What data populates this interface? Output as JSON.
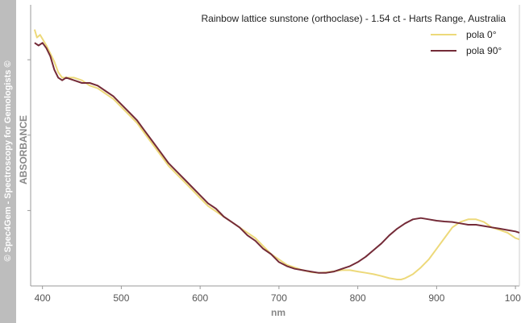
{
  "sidebar": {
    "watermark": "© Spec4Gem - Spectroscopy for Gemologists ©"
  },
  "chart_data": {
    "type": "line",
    "title": "Rainbow lattice sunstone (orthoclase) - 1.54 ct - Harts Range, Australia",
    "xlabel": "nm",
    "ylabel": "ABSORBANCE",
    "xlim": [
      385,
      1005
    ],
    "xticks": [
      400,
      500,
      600,
      700,
      800,
      900,
      1000
    ],
    "ylim": [
      0,
      1
    ],
    "yticks_labeled": false,
    "grid": false,
    "legend_position": "top-right",
    "series": [
      {
        "name": "pola 0°",
        "color": "#edd97a",
        "points": [
          [
            390,
            0.95
          ],
          [
            393,
            0.92
          ],
          [
            397,
            0.93
          ],
          [
            405,
            0.89
          ],
          [
            410,
            0.86
          ],
          [
            415,
            0.83
          ],
          [
            420,
            0.79
          ],
          [
            425,
            0.77
          ],
          [
            430,
            0.77
          ],
          [
            440,
            0.77
          ],
          [
            450,
            0.76
          ],
          [
            460,
            0.74
          ],
          [
            470,
            0.73
          ],
          [
            480,
            0.71
          ],
          [
            490,
            0.69
          ],
          [
            500,
            0.66
          ],
          [
            510,
            0.63
          ],
          [
            520,
            0.6
          ],
          [
            530,
            0.56
          ],
          [
            540,
            0.52
          ],
          [
            550,
            0.48
          ],
          [
            560,
            0.44
          ],
          [
            570,
            0.41
          ],
          [
            580,
            0.38
          ],
          [
            590,
            0.35
          ],
          [
            600,
            0.32
          ],
          [
            610,
            0.29
          ],
          [
            620,
            0.27
          ],
          [
            630,
            0.25
          ],
          [
            640,
            0.23
          ],
          [
            650,
            0.21
          ],
          [
            660,
            0.19
          ],
          [
            670,
            0.17
          ],
          [
            680,
            0.14
          ],
          [
            690,
            0.11
          ],
          [
            700,
            0.09
          ],
          [
            710,
            0.07
          ],
          [
            720,
            0.06
          ],
          [
            730,
            0.05
          ],
          [
            740,
            0.043
          ],
          [
            750,
            0.04
          ],
          [
            760,
            0.042
          ],
          [
            770,
            0.046
          ],
          [
            780,
            0.05
          ],
          [
            790,
            0.05
          ],
          [
            800,
            0.045
          ],
          [
            810,
            0.04
          ],
          [
            820,
            0.035
          ],
          [
            830,
            0.028
          ],
          [
            840,
            0.02
          ],
          [
            850,
            0.015
          ],
          [
            855,
            0.015
          ],
          [
            860,
            0.02
          ],
          [
            870,
            0.035
          ],
          [
            880,
            0.06
          ],
          [
            890,
            0.09
          ],
          [
            900,
            0.13
          ],
          [
            910,
            0.17
          ],
          [
            920,
            0.21
          ],
          [
            930,
            0.23
          ],
          [
            940,
            0.24
          ],
          [
            950,
            0.24
          ],
          [
            960,
            0.23
          ],
          [
            970,
            0.21
          ],
          [
            980,
            0.2
          ],
          [
            990,
            0.19
          ],
          [
            1000,
            0.17
          ],
          [
            1005,
            0.165
          ]
        ]
      },
      {
        "name": "pola 90°",
        "color": "#742b38",
        "points": [
          [
            390,
            0.9
          ],
          [
            395,
            0.89
          ],
          [
            400,
            0.9
          ],
          [
            405,
            0.88
          ],
          [
            410,
            0.85
          ],
          [
            415,
            0.8
          ],
          [
            420,
            0.77
          ],
          [
            425,
            0.76
          ],
          [
            430,
            0.77
          ],
          [
            440,
            0.76
          ],
          [
            450,
            0.75
          ],
          [
            460,
            0.75
          ],
          [
            470,
            0.74
          ],
          [
            480,
            0.72
          ],
          [
            490,
            0.7
          ],
          [
            500,
            0.67
          ],
          [
            510,
            0.64
          ],
          [
            520,
            0.61
          ],
          [
            530,
            0.57
          ],
          [
            540,
            0.53
          ],
          [
            550,
            0.49
          ],
          [
            560,
            0.45
          ],
          [
            570,
            0.42
          ],
          [
            580,
            0.39
          ],
          [
            590,
            0.36
          ],
          [
            600,
            0.33
          ],
          [
            610,
            0.3
          ],
          [
            620,
            0.28
          ],
          [
            630,
            0.25
          ],
          [
            640,
            0.23
          ],
          [
            650,
            0.21
          ],
          [
            660,
            0.18
          ],
          [
            670,
            0.16
          ],
          [
            680,
            0.13
          ],
          [
            690,
            0.11
          ],
          [
            700,
            0.08
          ],
          [
            710,
            0.065
          ],
          [
            720,
            0.055
          ],
          [
            730,
            0.05
          ],
          [
            740,
            0.045
          ],
          [
            750,
            0.04
          ],
          [
            760,
            0.04
          ],
          [
            770,
            0.045
          ],
          [
            780,
            0.055
          ],
          [
            790,
            0.065
          ],
          [
            800,
            0.08
          ],
          [
            810,
            0.1
          ],
          [
            820,
            0.125
          ],
          [
            830,
            0.15
          ],
          [
            840,
            0.18
          ],
          [
            850,
            0.205
          ],
          [
            860,
            0.225
          ],
          [
            870,
            0.24
          ],
          [
            880,
            0.245
          ],
          [
            890,
            0.24
          ],
          [
            900,
            0.235
          ],
          [
            910,
            0.232
          ],
          [
            920,
            0.23
          ],
          [
            930,
            0.225
          ],
          [
            940,
            0.22
          ],
          [
            950,
            0.22
          ],
          [
            960,
            0.215
          ],
          [
            970,
            0.21
          ],
          [
            980,
            0.205
          ],
          [
            990,
            0.2
          ],
          [
            1000,
            0.195
          ],
          [
            1005,
            0.19
          ]
        ]
      }
    ]
  }
}
